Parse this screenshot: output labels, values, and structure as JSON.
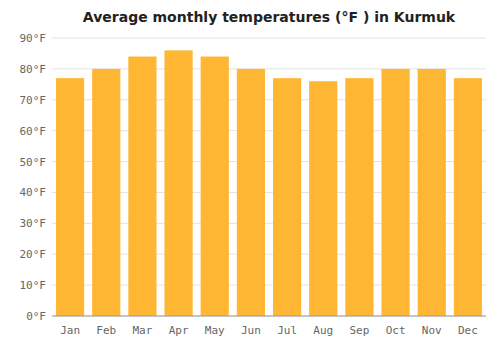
{
  "chart_data": {
    "type": "bar",
    "title": "Average monthly temperatures (°F ) in Kurmuk",
    "categories": [
      "Jan",
      "Feb",
      "Mar",
      "Apr",
      "May",
      "Jun",
      "Jul",
      "Aug",
      "Sep",
      "Oct",
      "Nov",
      "Dec"
    ],
    "values": [
      77,
      80,
      84,
      86,
      84,
      80,
      77,
      76,
      77,
      80,
      80,
      77
    ],
    "color": "#FFB733",
    "ylim": [
      0,
      90
    ],
    "yticks": [
      {
        "value": 0,
        "label": "0°F"
      },
      {
        "value": 10,
        "label": "10°F"
      },
      {
        "value": 20,
        "label": "20°F"
      },
      {
        "value": 30,
        "label": "30°F"
      },
      {
        "value": 40,
        "label": "40°F"
      },
      {
        "value": 50,
        "label": "50°F"
      },
      {
        "value": 60,
        "label": "60°F"
      },
      {
        "value": 70,
        "label": "70°F"
      },
      {
        "value": 80,
        "label": "80°F"
      },
      {
        "value": 90,
        "label": "90°F"
      }
    ],
    "grid": true
  }
}
